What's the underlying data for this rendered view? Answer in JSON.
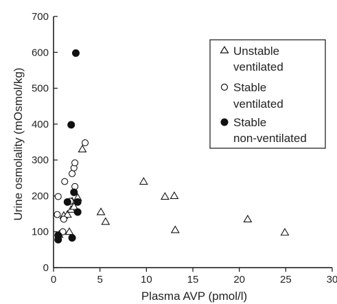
{
  "chart_data": {
    "type": "scatter",
    "xlabel": "Plasma AVP (pmol/l)",
    "ylabel": "Urine osmolality (mOsmol/kg)",
    "xlim": [
      0,
      30
    ],
    "ylim": [
      0,
      700
    ],
    "x_ticks": [
      0,
      5,
      10,
      15,
      20,
      25,
      30
    ],
    "y_ticks": [
      0,
      100,
      200,
      300,
      400,
      500,
      600,
      700
    ],
    "grid": false,
    "legend_position": "top-right",
    "series": [
      {
        "name": "Unstable ventilated",
        "marker": "open-triangle",
        "points": [
          [
            0.6,
            92
          ],
          [
            1.1,
            145
          ],
          [
            1.5,
            148
          ],
          [
            1.7,
            100
          ],
          [
            1.9,
            162
          ],
          [
            2.0,
            185
          ],
          [
            2.2,
            170
          ],
          [
            2.6,
            195
          ],
          [
            3.1,
            330
          ],
          [
            5.1,
            155
          ],
          [
            5.6,
            128
          ],
          [
            9.7,
            240
          ],
          [
            12.0,
            198
          ],
          [
            13.0,
            200
          ],
          [
            13.1,
            105
          ],
          [
            20.9,
            135
          ],
          [
            24.9,
            98
          ]
        ]
      },
      {
        "name": "Stable ventilated",
        "marker": "open-circle",
        "points": [
          [
            0.4,
            148
          ],
          [
            0.5,
            198
          ],
          [
            1.0,
            100
          ],
          [
            1.1,
            135
          ],
          [
            1.2,
            240
          ],
          [
            1.8,
            185
          ],
          [
            2.0,
            262
          ],
          [
            2.2,
            278
          ],
          [
            2.3,
            292
          ],
          [
            2.3,
            226
          ],
          [
            3.4,
            348
          ]
        ]
      },
      {
        "name": "Stable non-ventilated",
        "marker": "filled-circle",
        "points": [
          [
            0.5,
            78
          ],
          [
            0.5,
            90
          ],
          [
            1.5,
            183
          ],
          [
            1.9,
            398
          ],
          [
            2.0,
            83
          ],
          [
            2.2,
            210
          ],
          [
            2.4,
            598
          ],
          [
            2.6,
            155
          ],
          [
            2.6,
            183
          ]
        ]
      }
    ],
    "legend": [
      {
        "lines": [
          "Unstable",
          "ventilated"
        ]
      },
      {
        "lines": [
          "Stable",
          "ventilated"
        ]
      },
      {
        "lines": [
          "Stable",
          "non-ventilated"
        ]
      }
    ]
  }
}
